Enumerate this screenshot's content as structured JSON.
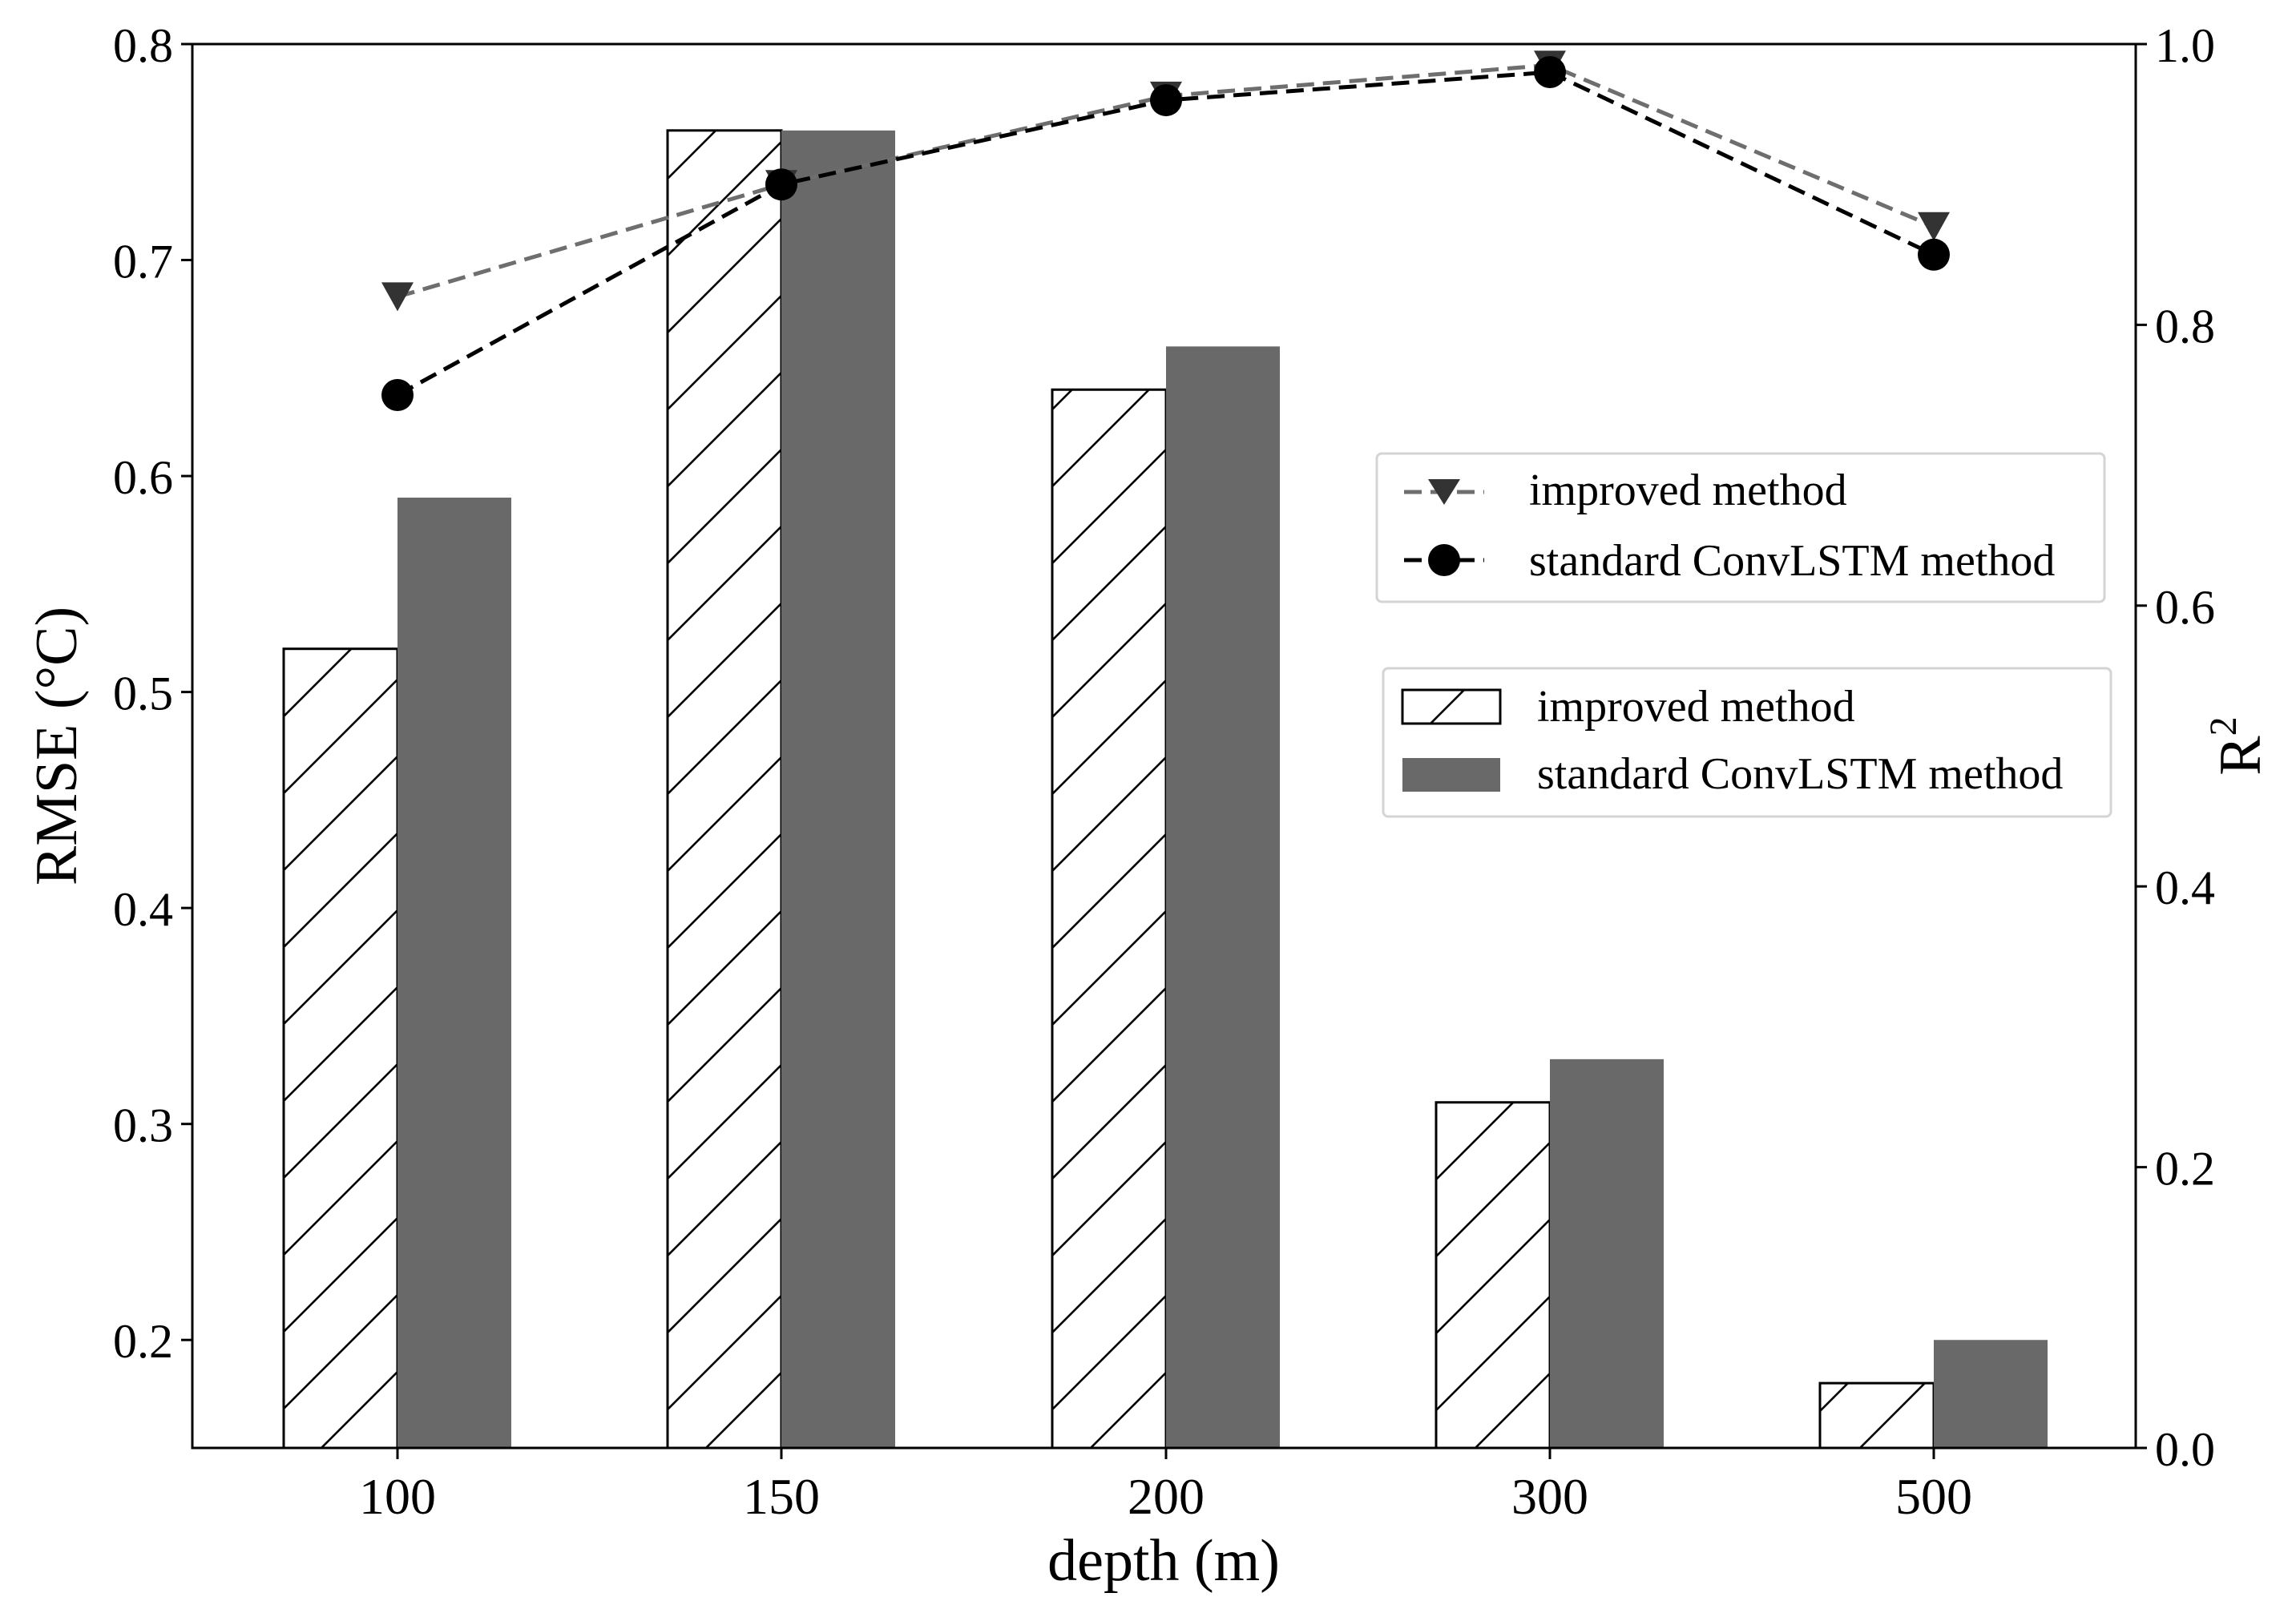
{
  "chart_data": {
    "type": "bar",
    "xlabel": "depth (m)",
    "categories": [
      "100",
      "150",
      "200",
      "300",
      "500"
    ],
    "y_left": {
      "label": "RMSE (°C)",
      "range": [
        0.15,
        0.8
      ],
      "ticks": [
        0.2,
        0.3,
        0.4,
        0.5,
        0.6,
        0.7,
        0.8
      ],
      "tick_labels": [
        "0.2",
        "0.3",
        "0.4",
        "0.5",
        "0.6",
        "0.7",
        "0.8"
      ]
    },
    "y_right": {
      "label_base": "R",
      "label_sup": "2",
      "range": [
        0.0,
        1.0
      ],
      "ticks": [
        0.0,
        0.2,
        0.4,
        0.6,
        0.8,
        1.0
      ],
      "tick_labels": [
        "0.0",
        "0.2",
        "0.4",
        "0.6",
        "0.8",
        "1.0"
      ]
    },
    "bar_series": [
      {
        "name": "improved method",
        "style": "hatched",
        "color": "#000000",
        "values": [
          0.52,
          0.76,
          0.64,
          0.31,
          0.18
        ]
      },
      {
        "name": "standard ConvLSTM method",
        "style": "solid",
        "color": "#696969",
        "values": [
          0.59,
          0.76,
          0.66,
          0.33,
          0.2
        ]
      }
    ],
    "line_series": [
      {
        "name": "improved method",
        "marker": "triangle-down",
        "color": "#6e6e6e",
        "dash": "dashed",
        "values": [
          0.82,
          0.9,
          0.963,
          0.985,
          0.87
        ]
      },
      {
        "name": "standard ConvLSTM method",
        "marker": "circle",
        "color": "#000000",
        "dash": "dashed",
        "values": [
          0.75,
          0.9,
          0.96,
          0.98,
          0.85
        ]
      }
    ],
    "legends": {
      "lines_position": "upper-right",
      "bars_position": "middle-right"
    }
  }
}
